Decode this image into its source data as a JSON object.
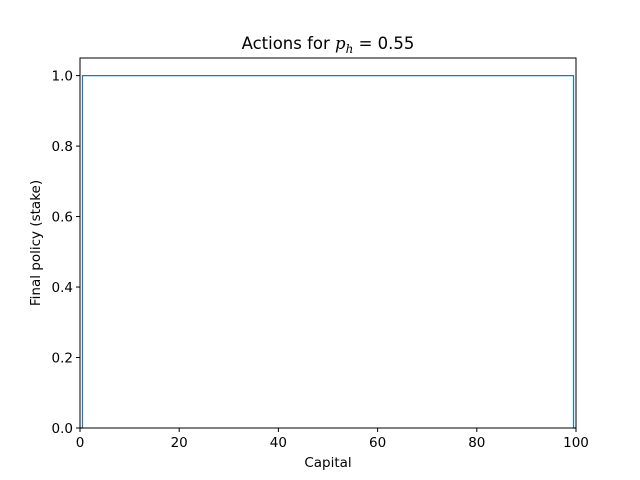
{
  "chart_data": {
    "type": "line",
    "title": {
      "prefix": "Actions for ",
      "var": "p",
      "sub": "h",
      "suffix": " =  0.55"
    },
    "xlabel": "Capital",
    "ylabel": "Final policy (stake)",
    "xlim": [
      0,
      100
    ],
    "ylim": [
      0,
      1.05
    ],
    "xticks": [
      0,
      20,
      40,
      60,
      80,
      100
    ],
    "yticks": [
      0.0,
      0.2,
      0.4,
      0.6,
      0.8,
      1.0
    ],
    "xtick_labels": [
      "0",
      "20",
      "40",
      "60",
      "80",
      "100"
    ],
    "ytick_labels": [
      "0.0",
      "0.2",
      "0.4",
      "0.6",
      "0.8",
      "1.0"
    ],
    "grid": false,
    "step": "mid",
    "series": [
      {
        "color": "#1f77b4",
        "x": [
          0,
          1,
          2,
          3,
          4,
          5,
          6,
          7,
          8,
          9,
          10,
          11,
          12,
          13,
          14,
          15,
          16,
          17,
          18,
          19,
          20,
          21,
          22,
          23,
          24,
          25,
          26,
          27,
          28,
          29,
          30,
          31,
          32,
          33,
          34,
          35,
          36,
          37,
          38,
          39,
          40,
          41,
          42,
          43,
          44,
          45,
          46,
          47,
          48,
          49,
          50,
          51,
          52,
          53,
          54,
          55,
          56,
          57,
          58,
          59,
          60,
          61,
          62,
          63,
          64,
          65,
          66,
          67,
          68,
          69,
          70,
          71,
          72,
          73,
          74,
          75,
          76,
          77,
          78,
          79,
          80,
          81,
          82,
          83,
          84,
          85,
          86,
          87,
          88,
          89,
          90,
          91,
          92,
          93,
          94,
          95,
          96,
          97,
          98,
          99,
          100
        ],
        "y": [
          0,
          1,
          1,
          1,
          1,
          1,
          1,
          1,
          1,
          1,
          1,
          1,
          1,
          1,
          1,
          1,
          1,
          1,
          1,
          1,
          1,
          1,
          1,
          1,
          1,
          1,
          1,
          1,
          1,
          1,
          1,
          1,
          1,
          1,
          1,
          1,
          1,
          1,
          1,
          1,
          1,
          1,
          1,
          1,
          1,
          1,
          1,
          1,
          1,
          1,
          1,
          1,
          1,
          1,
          1,
          1,
          1,
          1,
          1,
          1,
          1,
          1,
          1,
          1,
          1,
          1,
          1,
          1,
          1,
          1,
          1,
          1,
          1,
          1,
          1,
          1,
          1,
          1,
          1,
          1,
          1,
          1,
          1,
          1,
          1,
          1,
          1,
          1,
          1,
          1,
          1,
          1,
          1,
          1,
          1,
          1,
          1,
          1,
          1,
          1,
          0
        ]
      }
    ]
  }
}
